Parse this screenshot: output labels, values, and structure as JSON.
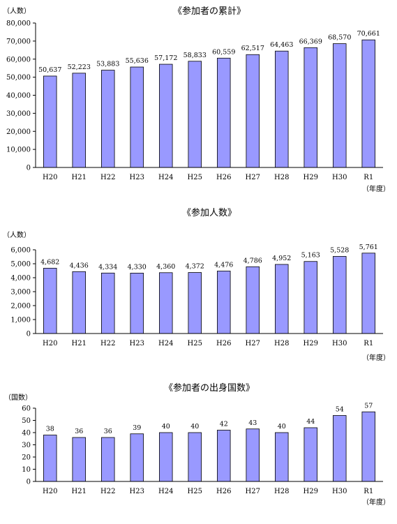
{
  "chart_data": [
    {
      "type": "bar",
      "title": "《参加者の累計》",
      "ylabel": "（人数）",
      "xlabel": "（年度）",
      "categories": [
        "H20",
        "H21",
        "H22",
        "H23",
        "H24",
        "H25",
        "H26",
        "H27",
        "H28",
        "H29",
        "H30",
        "R1"
      ],
      "values": [
        50637,
        52223,
        53883,
        55636,
        57172,
        58833,
        60559,
        62517,
        64463,
        66369,
        68570,
        70661
      ],
      "value_labels": [
        "50,637",
        "52,223",
        "53,883",
        "55,636",
        "57,172",
        "58,833",
        "60,559",
        "62,517",
        "64,463",
        "66,369",
        "68,570",
        "70,661"
      ],
      "ylim": [
        0,
        80000
      ],
      "yticks": [
        0,
        10000,
        20000,
        30000,
        40000,
        50000,
        60000,
        70000,
        80000
      ],
      "ytick_labels": [
        "0",
        "10,000",
        "20,000",
        "30,000",
        "40,000",
        "50,000",
        "60,000",
        "70,000",
        "80,000"
      ],
      "bar_color": "#9999ff",
      "grid": false,
      "legend": "none"
    },
    {
      "type": "bar",
      "title": "《参加人数》",
      "ylabel": "（人数）",
      "xlabel": "（年度）",
      "categories": [
        "H20",
        "H21",
        "H22",
        "H23",
        "H24",
        "H25",
        "H26",
        "H27",
        "H28",
        "H29",
        "H30",
        "R1"
      ],
      "values": [
        4682,
        4436,
        4334,
        4330,
        4360,
        4372,
        4476,
        4786,
        4952,
        5163,
        5528,
        5761
      ],
      "value_labels": [
        "4,682",
        "4,436",
        "4,334",
        "4,330",
        "4,360",
        "4,372",
        "4,476",
        "4,786",
        "4,952",
        "5,163",
        "5,528",
        "5,761"
      ],
      "ylim": [
        0,
        6000
      ],
      "yticks": [
        0,
        1000,
        2000,
        3000,
        4000,
        5000,
        6000
      ],
      "ytick_labels": [
        "0",
        "1,000",
        "2,000",
        "3,000",
        "4,000",
        "5,000",
        "6,000"
      ],
      "bar_color": "#9999ff",
      "grid": false,
      "legend": "none"
    },
    {
      "type": "bar",
      "title": "《参加者の出身国数》",
      "ylabel": "（国数）",
      "xlabel": "（年度）",
      "categories": [
        "H20",
        "H21",
        "H22",
        "H23",
        "H24",
        "H25",
        "H26",
        "H27",
        "H28",
        "H29",
        "H30",
        "R1"
      ],
      "values": [
        38,
        36,
        36,
        39,
        40,
        40,
        42,
        43,
        40,
        44,
        54,
        57
      ],
      "value_labels": [
        "38",
        "36",
        "36",
        "39",
        "40",
        "40",
        "42",
        "43",
        "40",
        "44",
        "54",
        "57"
      ],
      "ylim": [
        0,
        60
      ],
      "yticks": [
        0,
        10,
        20,
        30,
        40,
        50,
        60
      ],
      "ytick_labels": [
        "0",
        "10",
        "20",
        "30",
        "40",
        "50",
        "60"
      ],
      "bar_color": "#9999ff",
      "grid": false,
      "legend": "none"
    }
  ]
}
